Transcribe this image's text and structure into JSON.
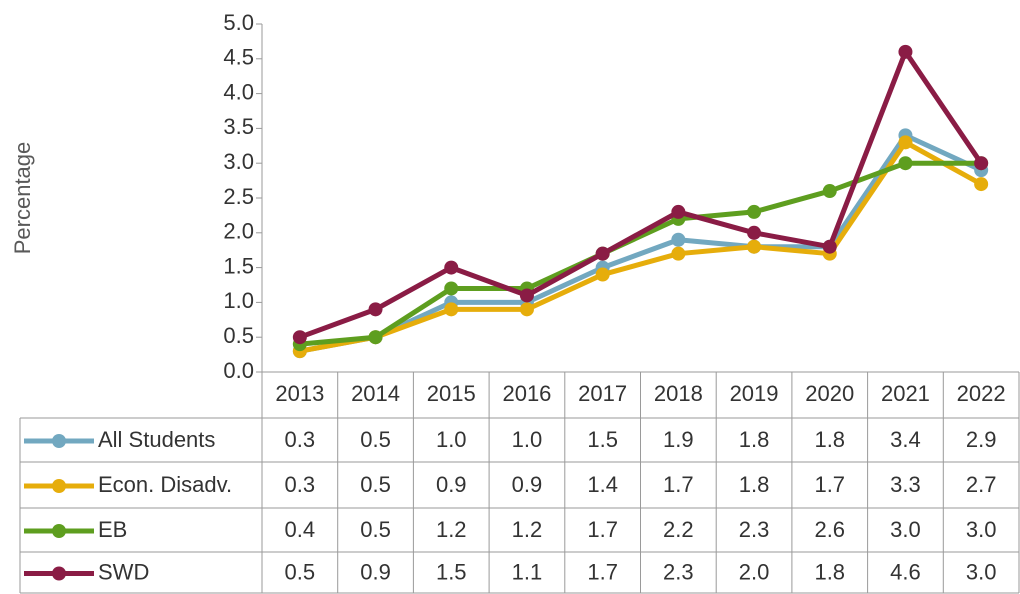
{
  "chart_data": {
    "type": "line",
    "y_label": "Percentage",
    "categories": [
      "2013",
      "2014",
      "2015",
      "2016",
      "2017",
      "2018",
      "2019",
      "2020",
      "2021",
      "2022"
    ],
    "series": [
      {
        "name": "All Students",
        "color": "#72a8c0",
        "values": [
          0.3,
          0.5,
          1,
          1,
          1.5,
          1.9,
          1.8,
          1.8,
          3.4,
          2.9
        ],
        "value_labels": [
          "0.3",
          "0.5",
          "1.0",
          "1.0",
          "1.5",
          "1.9",
          "1.8",
          "1.8",
          "3.4",
          "2.9"
        ]
      },
      {
        "name": "Econ. Disadv.",
        "color": "#e6ad0b",
        "values": [
          0.3,
          0.5,
          0.9,
          0.9,
          1.4,
          1.7,
          1.8,
          1.7,
          3.3,
          2.7
        ],
        "value_labels": [
          "0.3",
          "0.5",
          "0.9",
          "0.9",
          "1.4",
          "1.7",
          "1.8",
          "1.7",
          "3.3",
          "2.7"
        ]
      },
      {
        "name": "EB",
        "color": "#5e9e1f",
        "values": [
          0.4,
          0.5,
          1.2,
          1.2,
          1.7,
          2.2,
          2.3,
          2.6,
          3,
          3
        ],
        "value_labels": [
          "0.4",
          "0.5",
          "1.2",
          "1.2",
          "1.7",
          "2.2",
          "2.3",
          "2.6",
          "3.0",
          "3.0"
        ]
      },
      {
        "name": "SWD",
        "color": "#8a1c45",
        "values": [
          0.5,
          0.9,
          1.5,
          1.1,
          1.7,
          2.3,
          2,
          1.8,
          4.6,
          3
        ],
        "value_labels": [
          "0.5",
          "0.9",
          "1.5",
          "1.1",
          "1.7",
          "2.3",
          "2.0",
          "1.8",
          "4.6",
          "3.0"
        ]
      }
    ],
    "ylim": [
      0,
      5
    ],
    "yticks": [
      {
        "value": 0,
        "label": "0.0"
      },
      0.5,
      {
        "value": 1,
        "label": "1.0"
      },
      1.5,
      {
        "value": 2,
        "label": "2.0"
      },
      2.5,
      {
        "value": 3,
        "label": "3.0"
      },
      3.5,
      {
        "value": 4,
        "label": "4.0"
      },
      4.5,
      {
        "value": 5,
        "label": "5.0"
      }
    ],
    "grid": false
  }
}
